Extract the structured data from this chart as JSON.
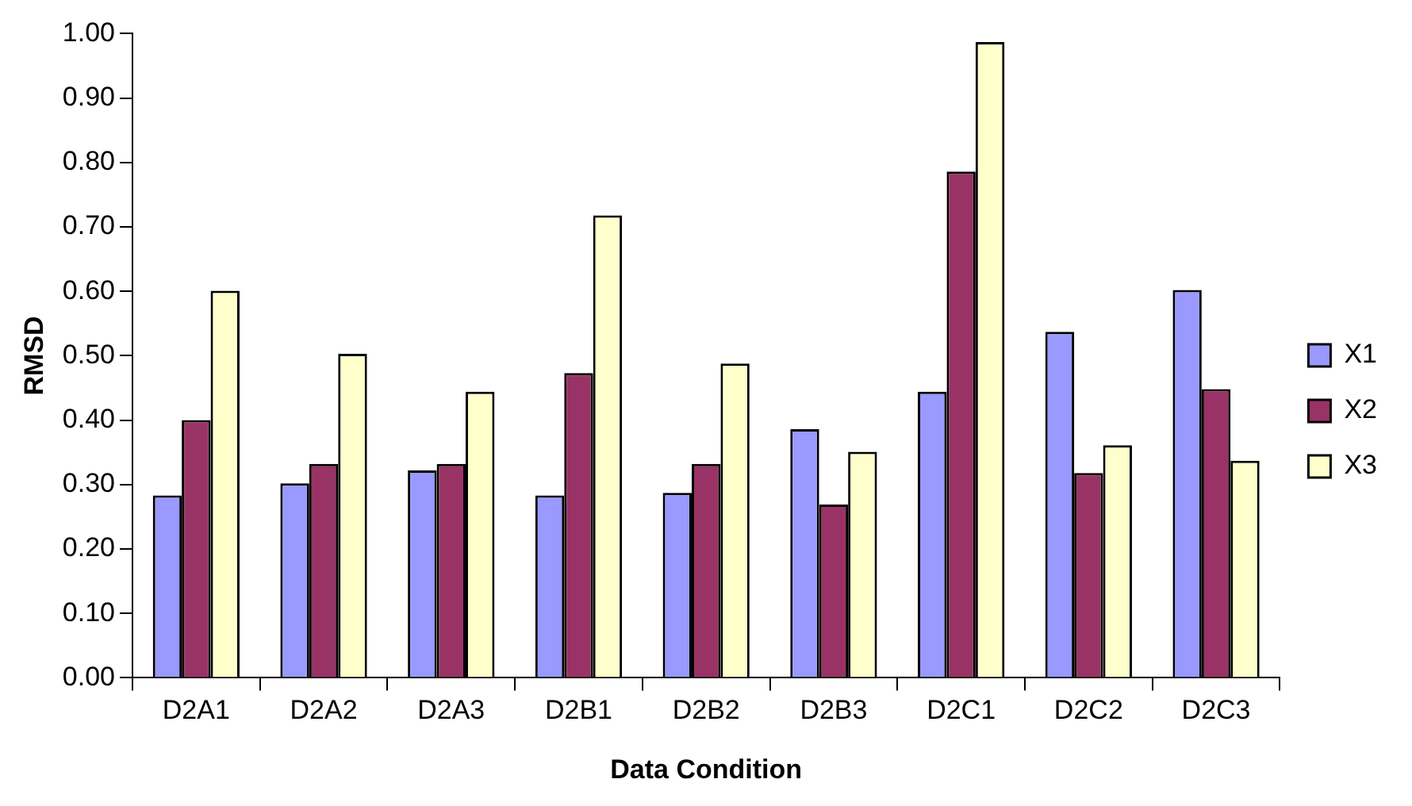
{
  "chart_data": {
    "type": "bar",
    "xlabel": "Data Condition",
    "ylabel": "RMSD",
    "categories": [
      "D2A1",
      "D2A2",
      "D2A3",
      "D2B1",
      "D2B2",
      "D2B3",
      "D2C1",
      "D2C2",
      "D2C3"
    ],
    "series": [
      {
        "name": "X1",
        "color": "#9999ff",
        "values": [
          0.283,
          0.302,
          0.322,
          0.283,
          0.287,
          0.386,
          0.444,
          0.537,
          0.602
        ]
      },
      {
        "name": "X2",
        "color": "#993366",
        "values": [
          0.4,
          0.332,
          0.332,
          0.473,
          0.332,
          0.269,
          0.786,
          0.318,
          0.448
        ]
      },
      {
        "name": "X3",
        "color": "#ffffcc",
        "values": [
          0.601,
          0.503,
          0.444,
          0.718,
          0.488,
          0.351,
          0.987,
          0.361,
          0.337
        ]
      }
    ],
    "ylim": [
      0,
      1
    ],
    "yticks": [
      {
        "value": 0,
        "label": "0.00"
      },
      {
        "value": 0.1,
        "label": "0.10"
      },
      {
        "value": 0.2,
        "label": "0.20"
      },
      {
        "value": 0.3,
        "label": "0.30"
      },
      {
        "value": 0.4,
        "label": "0.40"
      },
      {
        "value": 0.5,
        "label": "0.50"
      },
      {
        "value": 0.6,
        "label": "0.60"
      },
      {
        "value": 0.7,
        "label": "0.70"
      },
      {
        "value": 0.8,
        "label": "0.80"
      },
      {
        "value": 0.9,
        "label": "0.90"
      },
      {
        "value": 1,
        "label": "1.00"
      }
    ],
    "grid": false,
    "legend": "right"
  }
}
